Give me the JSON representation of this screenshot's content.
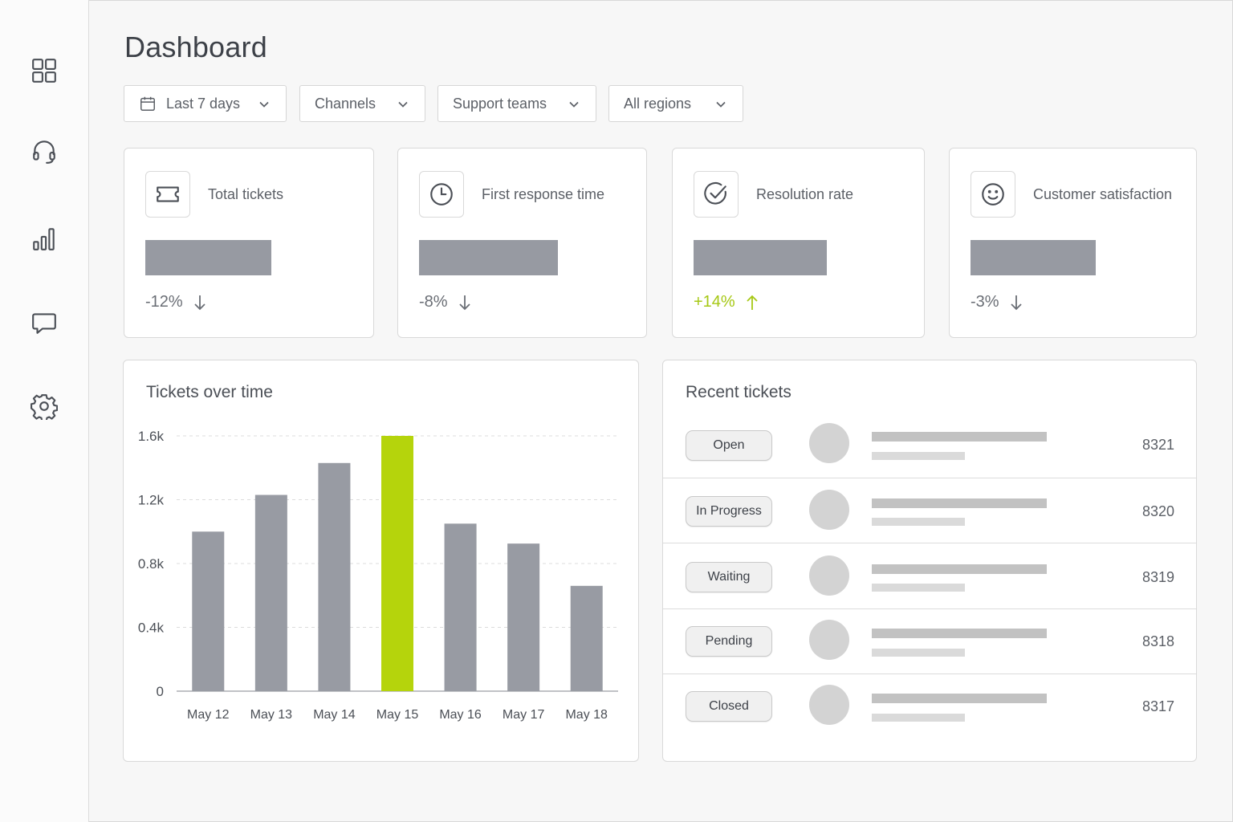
{
  "page": {
    "title": "Dashboard"
  },
  "sidebar": {
    "items": [
      {
        "icon": "grid-icon",
        "label": "Overview"
      },
      {
        "icon": "headset-icon",
        "label": "Support"
      },
      {
        "icon": "bar-chart-icon",
        "label": "Analytics"
      },
      {
        "icon": "chat-icon",
        "label": "Messages"
      },
      {
        "icon": "gear-icon",
        "label": "Settings"
      }
    ]
  },
  "filters": {
    "date_range": "Last 7 days",
    "channels": "Channels",
    "support_teams": "Support teams",
    "regions": "All regions"
  },
  "kpis": [
    {
      "label": "Total tickets",
      "icon": "ticket-icon",
      "change": "-12%",
      "direction": "down"
    },
    {
      "label": "First response time",
      "icon": "clock-icon",
      "change": "-8%",
      "direction": "down"
    },
    {
      "label": "Resolution rate",
      "icon": "check-circle-icon",
      "change": "+14%",
      "direction": "up"
    },
    {
      "label": "Customer satisfaction",
      "icon": "smiley-icon",
      "change": "-3%",
      "direction": "down"
    }
  ],
  "colors": {
    "accent": "#b5d40c",
    "bar": "#989ba3",
    "positive": "#a6c814",
    "neutral": "#6a6e75"
  },
  "chart_data": {
    "type": "bar",
    "title": "Tickets over time",
    "categories": [
      "May 12",
      "May 13",
      "May 14",
      "May 15",
      "May 16",
      "May 17",
      "May 18"
    ],
    "values": [
      1000,
      1230,
      1430,
      1600,
      1050,
      925,
      660
    ],
    "highlight_index": 3,
    "yticks": [
      "0",
      "0.4k",
      "0.8k",
      "1.2k",
      "1.6k"
    ],
    "ylim": [
      0,
      1600
    ],
    "grid": true,
    "xlabel": "",
    "ylabel": ""
  },
  "recent_tickets": {
    "title": "Recent tickets",
    "rows": [
      {
        "status": "Open",
        "id": "8321"
      },
      {
        "status": "In Progress",
        "id": "8320"
      },
      {
        "status": "Waiting",
        "id": "8319"
      },
      {
        "status": "Pending",
        "id": "8318"
      },
      {
        "status": "Closed",
        "id": "8317"
      }
    ]
  }
}
